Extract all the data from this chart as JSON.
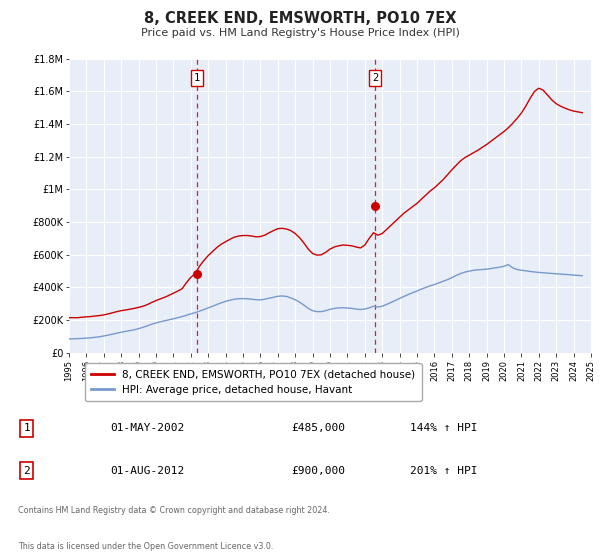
{
  "title": "8, CREEK END, EMSWORTH, PO10 7EX",
  "subtitle": "Price paid vs. HM Land Registry's House Price Index (HPI)",
  "ylim": [
    0,
    1800000
  ],
  "yticks": [
    0,
    200000,
    400000,
    600000,
    800000,
    1000000,
    1200000,
    1400000,
    1600000,
    1800000
  ],
  "ytick_labels": [
    "£0",
    "£200K",
    "£400K",
    "£600K",
    "£800K",
    "£1M",
    "£1.2M",
    "£1.4M",
    "£1.6M",
    "£1.8M"
  ],
  "xlim": [
    1995,
    2025
  ],
  "background_color": "#ffffff",
  "plot_bg_color": "#e8eef8",
  "grid_color": "#ffffff",
  "red_line_color": "#cc0000",
  "blue_line_color": "#7799cc",
  "marker_color": "#cc0000",
  "event1_x": 2002.33,
  "event1_y": 485000,
  "event2_x": 2012.58,
  "event2_y": 900000,
  "legend_line1": "8, CREEK END, EMSWORTH, PO10 7EX (detached house)",
  "legend_line2": "HPI: Average price, detached house, Havant",
  "table_row1": [
    "1",
    "01-MAY-2002",
    "£485,000",
    "144% ↑ HPI"
  ],
  "table_row2": [
    "2",
    "01-AUG-2012",
    "£900,000",
    "201% ↑ HPI"
  ],
  "footnote1": "Contains HM Land Registry data © Crown copyright and database right 2024.",
  "footnote2": "This data is licensed under the Open Government Licence v3.0.",
  "hpi_red_years": [
    1995.0,
    1995.25,
    1995.5,
    1995.75,
    1996.0,
    1996.25,
    1996.5,
    1996.75,
    1997.0,
    1997.25,
    1997.5,
    1997.75,
    1998.0,
    1998.25,
    1998.5,
    1998.75,
    1999.0,
    1999.25,
    1999.5,
    1999.75,
    2000.0,
    2000.25,
    2000.5,
    2000.75,
    2001.0,
    2001.25,
    2001.5,
    2001.75,
    2002.0,
    2002.25,
    2002.5,
    2002.75,
    2003.0,
    2003.25,
    2003.5,
    2003.75,
    2004.0,
    2004.25,
    2004.5,
    2004.75,
    2005.0,
    2005.25,
    2005.5,
    2005.75,
    2006.0,
    2006.25,
    2006.5,
    2006.75,
    2007.0,
    2007.25,
    2007.5,
    2007.75,
    2008.0,
    2008.25,
    2008.5,
    2008.75,
    2009.0,
    2009.25,
    2009.5,
    2009.75,
    2010.0,
    2010.25,
    2010.5,
    2010.75,
    2011.0,
    2011.25,
    2011.5,
    2011.75,
    2012.0,
    2012.25,
    2012.5,
    2012.75,
    2013.0,
    2013.25,
    2013.5,
    2013.75,
    2014.0,
    2014.25,
    2014.5,
    2014.75,
    2015.0,
    2015.25,
    2015.5,
    2015.75,
    2016.0,
    2016.25,
    2016.5,
    2016.75,
    2017.0,
    2017.25,
    2017.5,
    2017.75,
    2018.0,
    2018.25,
    2018.5,
    2018.75,
    2019.0,
    2019.25,
    2019.5,
    2019.75,
    2020.0,
    2020.25,
    2020.5,
    2020.75,
    2021.0,
    2021.25,
    2021.5,
    2021.75,
    2022.0,
    2022.25,
    2022.5,
    2022.75,
    2023.0,
    2023.25,
    2023.5,
    2023.75,
    2024.0,
    2024.25,
    2024.5
  ],
  "hpi_red_values": [
    215000,
    215000,
    215000,
    218000,
    220000,
    222000,
    225000,
    228000,
    232000,
    238000,
    245000,
    252000,
    258000,
    262000,
    267000,
    272000,
    278000,
    285000,
    295000,
    308000,
    320000,
    330000,
    340000,
    352000,
    365000,
    378000,
    392000,
    430000,
    462000,
    485000,
    530000,
    565000,
    595000,
    620000,
    645000,
    665000,
    680000,
    695000,
    708000,
    715000,
    718000,
    718000,
    715000,
    710000,
    712000,
    720000,
    735000,
    748000,
    760000,
    762000,
    758000,
    748000,
    730000,
    705000,
    672000,
    635000,
    608000,
    598000,
    600000,
    615000,
    635000,
    648000,
    655000,
    660000,
    658000,
    655000,
    648000,
    642000,
    660000,
    700000,
    735000,
    720000,
    730000,
    755000,
    780000,
    805000,
    830000,
    855000,
    875000,
    895000,
    915000,
    940000,
    965000,
    990000,
    1010000,
    1035000,
    1060000,
    1090000,
    1120000,
    1148000,
    1175000,
    1195000,
    1210000,
    1225000,
    1240000,
    1258000,
    1275000,
    1295000,
    1315000,
    1335000,
    1355000,
    1378000,
    1405000,
    1435000,
    1468000,
    1510000,
    1558000,
    1600000,
    1620000,
    1608000,
    1578000,
    1548000,
    1525000,
    1510000,
    1498000,
    1488000,
    1480000,
    1475000,
    1470000
  ],
  "hpi_blue_years": [
    1995.0,
    1995.25,
    1995.5,
    1995.75,
    1996.0,
    1996.25,
    1996.5,
    1996.75,
    1997.0,
    1997.25,
    1997.5,
    1997.75,
    1998.0,
    1998.25,
    1998.5,
    1998.75,
    1999.0,
    1999.25,
    1999.5,
    1999.75,
    2000.0,
    2000.25,
    2000.5,
    2000.75,
    2001.0,
    2001.25,
    2001.5,
    2001.75,
    2002.0,
    2002.25,
    2002.5,
    2002.75,
    2003.0,
    2003.25,
    2003.5,
    2003.75,
    2004.0,
    2004.25,
    2004.5,
    2004.75,
    2005.0,
    2005.25,
    2005.5,
    2005.75,
    2006.0,
    2006.25,
    2006.5,
    2006.75,
    2007.0,
    2007.25,
    2007.5,
    2007.75,
    2008.0,
    2008.25,
    2008.5,
    2008.75,
    2009.0,
    2009.25,
    2009.5,
    2009.75,
    2010.0,
    2010.25,
    2010.5,
    2010.75,
    2011.0,
    2011.25,
    2011.5,
    2011.75,
    2012.0,
    2012.25,
    2012.5,
    2012.75,
    2013.0,
    2013.25,
    2013.5,
    2013.75,
    2014.0,
    2014.25,
    2014.5,
    2014.75,
    2015.0,
    2015.25,
    2015.5,
    2015.75,
    2016.0,
    2016.25,
    2016.5,
    2016.75,
    2017.0,
    2017.25,
    2017.5,
    2017.75,
    2018.0,
    2018.25,
    2018.5,
    2018.75,
    2019.0,
    2019.25,
    2019.5,
    2019.75,
    2020.0,
    2020.25,
    2020.5,
    2020.75,
    2021.0,
    2021.25,
    2021.5,
    2021.75,
    2022.0,
    2022.25,
    2022.5,
    2022.75,
    2023.0,
    2023.25,
    2023.5,
    2023.75,
    2024.0,
    2024.25,
    2024.5
  ],
  "hpi_blue_values": [
    85000,
    86000,
    87000,
    88000,
    90000,
    92000,
    95000,
    98000,
    103000,
    108000,
    114000,
    120000,
    126000,
    131000,
    136000,
    141000,
    148000,
    156000,
    165000,
    175000,
    183000,
    190000,
    196000,
    202000,
    208000,
    215000,
    222000,
    230000,
    238000,
    246000,
    255000,
    265000,
    275000,
    285000,
    296000,
    306000,
    315000,
    322000,
    328000,
    331000,
    332000,
    331000,
    328000,
    325000,
    324000,
    328000,
    334000,
    340000,
    346000,
    348000,
    345000,
    336000,
    325000,
    310000,
    292000,
    272000,
    258000,
    252000,
    252000,
    258000,
    266000,
    272000,
    275000,
    276000,
    274000,
    272000,
    268000,
    265000,
    268000,
    275000,
    285000,
    280000,
    285000,
    296000,
    308000,
    320000,
    333000,
    345000,
    357000,
    368000,
    378000,
    390000,
    400000,
    410000,
    418000,
    428000,
    438000,
    448000,
    460000,
    473000,
    485000,
    494000,
    500000,
    505000,
    508000,
    510000,
    512000,
    516000,
    520000,
    524000,
    530000,
    540000,
    520000,
    510000,
    505000,
    502000,
    498000,
    495000,
    492000,
    490000,
    488000,
    486000,
    484000,
    482000,
    480000,
    478000,
    476000,
    474000,
    472000
  ]
}
